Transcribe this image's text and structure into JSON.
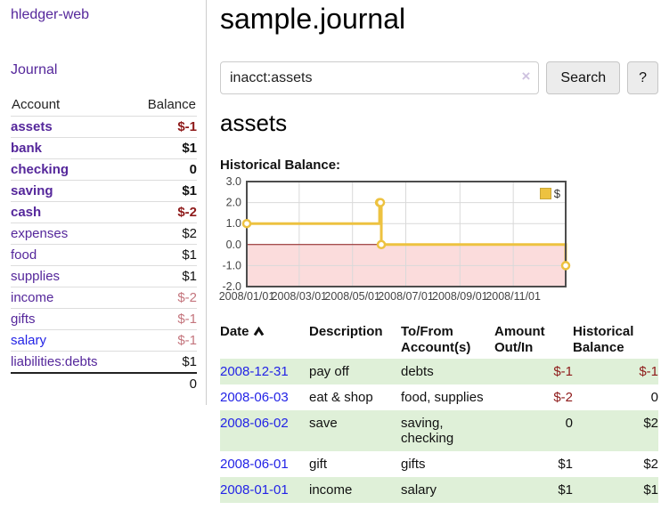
{
  "app": {
    "brand": "hledger-web",
    "nav": {
      "journal": "Journal"
    }
  },
  "sidebar": {
    "columns": {
      "account": "Account",
      "balance": "Balance"
    },
    "accounts": [
      {
        "name": "assets",
        "depth": 0,
        "balance": "$-1",
        "bold": true,
        "neg": true,
        "faded": false,
        "blue": false
      },
      {
        "name": "bank",
        "depth": 1,
        "balance": "$1",
        "bold": true,
        "neg": false,
        "faded": false,
        "blue": false
      },
      {
        "name": "checking",
        "depth": 2,
        "balance": "0",
        "bold": true,
        "neg": false,
        "faded": false,
        "blue": false
      },
      {
        "name": "saving",
        "depth": 2,
        "balance": "$1",
        "bold": true,
        "neg": false,
        "faded": false,
        "blue": false
      },
      {
        "name": "cash",
        "depth": 1,
        "balance": "$-2",
        "bold": true,
        "neg": true,
        "faded": false,
        "blue": false
      },
      {
        "name": "expenses",
        "depth": 0,
        "balance": "$2",
        "bold": false,
        "neg": false,
        "faded": false,
        "blue": false
      },
      {
        "name": "food",
        "depth": 1,
        "balance": "$1",
        "bold": false,
        "neg": false,
        "faded": false,
        "blue": false
      },
      {
        "name": "supplies",
        "depth": 1,
        "balance": "$1",
        "bold": false,
        "neg": false,
        "faded": false,
        "blue": false
      },
      {
        "name": "income",
        "depth": 0,
        "balance": "$-2",
        "bold": false,
        "neg": true,
        "faded": true,
        "blue": false
      },
      {
        "name": "gifts",
        "depth": 1,
        "balance": "$-1",
        "bold": false,
        "neg": true,
        "faded": true,
        "blue": false
      },
      {
        "name": "salary",
        "depth": 1,
        "balance": "$-1",
        "bold": false,
        "neg": true,
        "faded": true,
        "blue": true
      },
      {
        "name": "liabilities:debts",
        "depth": 0,
        "balance": "$1",
        "bold": false,
        "neg": false,
        "faded": false,
        "blue": false
      }
    ],
    "total": "0"
  },
  "main": {
    "title": "sample.journal",
    "search": {
      "query": "inacct:assets",
      "clear_icon": "×",
      "search_label": "Search",
      "help_label": "?"
    },
    "account_heading": "assets",
    "chart_title": "Historical Balance:"
  },
  "chart_data": {
    "type": "line",
    "step": true,
    "title": "Historical Balance",
    "x": [
      "2008-01-01",
      "2008-06-01",
      "2008-06-02",
      "2008-06-03",
      "2008-12-31"
    ],
    "series": [
      {
        "name": "$",
        "color": "#edc240",
        "values": [
          1,
          2,
          2,
          0,
          -1
        ]
      }
    ],
    "xlim": [
      "2008-01-01",
      "2008-12-31"
    ],
    "ylim": [
      -2,
      3
    ],
    "x_ticks": [
      {
        "t": "2008-01-01",
        "label": "2008/01/01"
      },
      {
        "t": "2008-03-01",
        "label": "2008/03/01"
      },
      {
        "t": "2008-05-01",
        "label": "2008/05/01"
      },
      {
        "t": "2008-07-01",
        "label": "2008/07/01"
      },
      {
        "t": "2008-09-01",
        "label": "2008/09/01"
      },
      {
        "t": "2008-11-01",
        "label": "2008/11/01"
      }
    ],
    "y_ticks": [
      {
        "v": 3,
        "label": "3.0"
      },
      {
        "v": 2,
        "label": "2.0"
      },
      {
        "v": 1,
        "label": "1.0"
      },
      {
        "v": 0,
        "label": "0.0"
      },
      {
        "v": -1,
        "label": "-1.0"
      },
      {
        "v": -2,
        "label": "-2.0"
      }
    ],
    "legend": {
      "label": "$",
      "position": "top-right"
    },
    "grid": true,
    "styles": {
      "negative_region_fill": "#fbdcdc",
      "zero_line_color": "#8e1a1a",
      "grid_color": "#d9d9d9",
      "border_color": "#4d4d4d",
      "marker_fill": "#ffffff"
    }
  },
  "register": {
    "columns": {
      "date": "Date",
      "sort": "ascending",
      "description": "Description",
      "accounts": "To/From Account(s)",
      "amount": "Amount Out/In",
      "balance": "Historical Balance"
    },
    "rows": [
      {
        "date": "2008-12-31",
        "description": "pay off",
        "accounts": "debts",
        "amount": "$-1",
        "amount_neg": true,
        "balance": "$-1",
        "balance_neg": true
      },
      {
        "date": "2008-06-03",
        "description": "eat & shop",
        "accounts": "food, supplies",
        "amount": "$-2",
        "amount_neg": true,
        "balance": "0",
        "balance_neg": false
      },
      {
        "date": "2008-06-02",
        "description": "save",
        "accounts": "saving, checking",
        "amount": "0",
        "amount_neg": false,
        "balance": "$2",
        "balance_neg": false
      },
      {
        "date": "2008-06-01",
        "description": "gift",
        "accounts": "gifts",
        "amount": "$1",
        "amount_neg": false,
        "balance": "$2",
        "balance_neg": false
      },
      {
        "date": "2008-01-01",
        "description": "income",
        "accounts": "salary",
        "amount": "$1",
        "amount_neg": false,
        "balance": "$1",
        "balance_neg": false
      }
    ]
  },
  "colors": {
    "brand_purple": "#55279b",
    "link_blue": "#2323e6",
    "negative_red": "#8e1a1a",
    "negative_faded": "#c4757d",
    "row_stripe_green": "#dff0d8",
    "chart_line_gold": "#edc240"
  }
}
